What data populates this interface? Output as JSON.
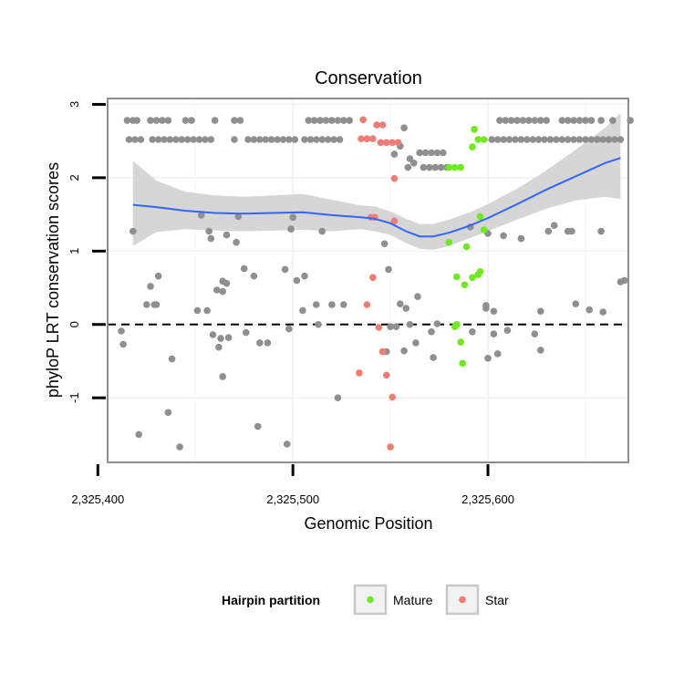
{
  "chart_data": {
    "type": "scatter",
    "title": "Conservation",
    "xlabel": "Genomic Position",
    "ylabel": "phyloP LRT conservation scores",
    "xlim": [
      2325405,
      2325672
    ],
    "ylim": [
      -1.88,
      3.08
    ],
    "x_ticks": [
      {
        "value": 2325400,
        "label": "2,325,400"
      },
      {
        "value": 2325500,
        "label": "2,325,500"
      },
      {
        "value": 2325600,
        "label": "2,325,600"
      }
    ],
    "y_ticks": [
      {
        "value": -1,
        "label": "-1"
      },
      {
        "value": 0,
        "label": "0"
      },
      {
        "value": 1,
        "label": "1"
      },
      {
        "value": 2,
        "label": "2"
      },
      {
        "value": 3,
        "label": "3"
      }
    ],
    "reference_line": {
      "y": 0,
      "style": "dashed"
    },
    "grid": true,
    "legend": {
      "title": "Hairpin partition",
      "placement": "bottom",
      "entries": [
        {
          "label": "Mature",
          "color": "#6EEA1E"
        },
        {
          "label": "Star",
          "color": "#F07C74"
        }
      ]
    },
    "colors": {
      "other": "#8F8F8F",
      "mature": "#6EEA1E",
      "star": "#F07C74",
      "smooth_line": "#3366FF",
      "ribbon": "#D2D2D2"
    },
    "series": [
      {
        "name": "Other",
        "color": "#8F8F8F",
        "points": [
          [
            2325415,
            2.78
          ],
          [
            2325418,
            2.78
          ],
          [
            2325420,
            2.78
          ],
          [
            2325427,
            2.78
          ],
          [
            2325430,
            2.78
          ],
          [
            2325433,
            2.78
          ],
          [
            2325436,
            2.78
          ],
          [
            2325445,
            2.78
          ],
          [
            2325448,
            2.78
          ],
          [
            2325460,
            2.78
          ],
          [
            2325470,
            2.78
          ],
          [
            2325473,
            2.78
          ],
          [
            2325508,
            2.78
          ],
          [
            2325511,
            2.78
          ],
          [
            2325514,
            2.78
          ],
          [
            2325517,
            2.78
          ],
          [
            2325520,
            2.78
          ],
          [
            2325523,
            2.78
          ],
          [
            2325526,
            2.78
          ],
          [
            2325529,
            2.78
          ],
          [
            2325606,
            2.78
          ],
          [
            2325609,
            2.78
          ],
          [
            2325612,
            2.78
          ],
          [
            2325615,
            2.78
          ],
          [
            2325618,
            2.78
          ],
          [
            2325621,
            2.78
          ],
          [
            2325624,
            2.78
          ],
          [
            2325627,
            2.78
          ],
          [
            2325630,
            2.78
          ],
          [
            2325638,
            2.78
          ],
          [
            2325641,
            2.78
          ],
          [
            2325644,
            2.78
          ],
          [
            2325647,
            2.78
          ],
          [
            2325650,
            2.78
          ],
          [
            2325653,
            2.78
          ],
          [
            2325658,
            2.78
          ],
          [
            2325664,
            2.78
          ],
          [
            2325673,
            2.78
          ],
          [
            2325416,
            2.52
          ],
          [
            2325419,
            2.52
          ],
          [
            2325422,
            2.52
          ],
          [
            2325428,
            2.52
          ],
          [
            2325431,
            2.52
          ],
          [
            2325434,
            2.52
          ],
          [
            2325437,
            2.52
          ],
          [
            2325440,
            2.52
          ],
          [
            2325443,
            2.52
          ],
          [
            2325446,
            2.52
          ],
          [
            2325449,
            2.52
          ],
          [
            2325452,
            2.52
          ],
          [
            2325455,
            2.52
          ],
          [
            2325458,
            2.52
          ],
          [
            2325470,
            2.52
          ],
          [
            2325477,
            2.52
          ],
          [
            2325480,
            2.52
          ],
          [
            2325483,
            2.52
          ],
          [
            2325486,
            2.52
          ],
          [
            2325489,
            2.52
          ],
          [
            2325492,
            2.52
          ],
          [
            2325495,
            2.52
          ],
          [
            2325498,
            2.52
          ],
          [
            2325501,
            2.52
          ],
          [
            2325506,
            2.52
          ],
          [
            2325509,
            2.52
          ],
          [
            2325512,
            2.52
          ],
          [
            2325515,
            2.52
          ],
          [
            2325518,
            2.52
          ],
          [
            2325521,
            2.52
          ],
          [
            2325524,
            2.52
          ],
          [
            2325602,
            2.52
          ],
          [
            2325605,
            2.52
          ],
          [
            2325608,
            2.52
          ],
          [
            2325611,
            2.52
          ],
          [
            2325614,
            2.52
          ],
          [
            2325617,
            2.52
          ],
          [
            2325620,
            2.52
          ],
          [
            2325623,
            2.52
          ],
          [
            2325626,
            2.52
          ],
          [
            2325629,
            2.52
          ],
          [
            2325632,
            2.52
          ],
          [
            2325635,
            2.52
          ],
          [
            2325638,
            2.52
          ],
          [
            2325641,
            2.52
          ],
          [
            2325644,
            2.52
          ],
          [
            2325647,
            2.52
          ],
          [
            2325650,
            2.52
          ],
          [
            2325653,
            2.52
          ],
          [
            2325656,
            2.52
          ],
          [
            2325659,
            2.52
          ],
          [
            2325662,
            2.52
          ],
          [
            2325665,
            2.52
          ],
          [
            2325668,
            2.52
          ],
          [
            2325557,
            2.68
          ],
          [
            2325555,
            2.43
          ],
          [
            2325552,
            2.32
          ],
          [
            2325560,
            2.26
          ],
          [
            2325562,
            2.2
          ],
          [
            2325559,
            2.14
          ],
          [
            2325565,
            2.34
          ],
          [
            2325568,
            2.34
          ],
          [
            2325571,
            2.34
          ],
          [
            2325574,
            2.34
          ],
          [
            2325577,
            2.34
          ],
          [
            2325567,
            2.14
          ],
          [
            2325570,
            2.14
          ],
          [
            2325573,
            2.14
          ],
          [
            2325576,
            2.14
          ],
          [
            2325579,
            2.14
          ],
          [
            2325418,
            1.27
          ],
          [
            2325453,
            1.49
          ],
          [
            2325457,
            1.27
          ],
          [
            2325458,
            1.17
          ],
          [
            2325466,
            1.22
          ],
          [
            2325472,
            1.47
          ],
          [
            2325471,
            1.12
          ],
          [
            2325500,
            1.46
          ],
          [
            2325499,
            1.3
          ],
          [
            2325515,
            1.27
          ],
          [
            2325547,
            1.1
          ],
          [
            2325591,
            1.33
          ],
          [
            2325600,
            1.24
          ],
          [
            2325608,
            1.21
          ],
          [
            2325617,
            1.17
          ],
          [
            2325631,
            1.27
          ],
          [
            2325634,
            1.35
          ],
          [
            2325641,
            1.27
          ],
          [
            2325643,
            1.27
          ],
          [
            2325658,
            1.27
          ],
          [
            2325427,
            0.52
          ],
          [
            2325431,
            0.66
          ],
          [
            2325425,
            0.27
          ],
          [
            2325430,
            0.27
          ],
          [
            2325429,
            0.27
          ],
          [
            2325451,
            0.19
          ],
          [
            2325456,
            0.19
          ],
          [
            2325461,
            0.47
          ],
          [
            2325464,
            0.59
          ],
          [
            2325466,
            0.56
          ],
          [
            2325464,
            0.45
          ],
          [
            2325475,
            0.76
          ],
          [
            2325480,
            0.66
          ],
          [
            2325496,
            0.75
          ],
          [
            2325502,
            0.6
          ],
          [
            2325506,
            0.66
          ],
          [
            2325505,
            0.19
          ],
          [
            2325512,
            0.27
          ],
          [
            2325520,
            0.27
          ],
          [
            2325526,
            0.27
          ],
          [
            2325549,
            0.75
          ],
          [
            2325555,
            0.28
          ],
          [
            2325558,
            0.22
          ],
          [
            2325564,
            0.38
          ],
          [
            2325599,
            0.26
          ],
          [
            2325599,
            0.22
          ],
          [
            2325603,
            0.18
          ],
          [
            2325627,
            0.18
          ],
          [
            2325645,
            0.28
          ],
          [
            2325652,
            0.2
          ],
          [
            2325659,
            0.17
          ],
          [
            2325668,
            0.58
          ],
          [
            2325670,
            0.6
          ],
          [
            2325412,
            -0.09
          ],
          [
            2325413,
            -0.27
          ],
          [
            2325438,
            -0.47
          ],
          [
            2325459,
            -0.14
          ],
          [
            2325463,
            -0.19
          ],
          [
            2325467,
            -0.18
          ],
          [
            2325462,
            -0.31
          ],
          [
            2325476,
            -0.11
          ],
          [
            2325483,
            -0.25
          ],
          [
            2325487,
            -0.25
          ],
          [
            2325498,
            -0.06
          ],
          [
            2325513,
            0.0
          ],
          [
            2325550,
            -0.03
          ],
          [
            2325553,
            -0.03
          ],
          [
            2325560,
            0.0
          ],
          [
            2325563,
            -0.25
          ],
          [
            2325571,
            -0.1
          ],
          [
            2325574,
            0.01
          ],
          [
            2325592,
            -0.1
          ],
          [
            2325603,
            -0.13
          ],
          [
            2325605,
            -0.4
          ],
          [
            2325610,
            -0.08
          ],
          [
            2325624,
            -0.13
          ],
          [
            2325627,
            -0.35
          ],
          [
            2325548,
            -0.37
          ],
          [
            2325557,
            -0.36
          ],
          [
            2325572,
            -0.45
          ],
          [
            2325600,
            -0.46
          ],
          [
            2325464,
            -0.71
          ],
          [
            2325523,
            -1.0
          ],
          [
            2325421,
            -1.5
          ],
          [
            2325436,
            -1.2
          ],
          [
            2325442,
            -1.67
          ],
          [
            2325482,
            -1.39
          ],
          [
            2325497,
            -1.63
          ]
        ]
      },
      {
        "name": "Mature",
        "color": "#6EEA1E",
        "points": [
          [
            2325593,
            2.66
          ],
          [
            2325592,
            2.42
          ],
          [
            2325595,
            2.52
          ],
          [
            2325598,
            2.52
          ],
          [
            2325580,
            2.14
          ],
          [
            2325583,
            2.14
          ],
          [
            2325586,
            2.14
          ],
          [
            2325596,
            1.47
          ],
          [
            2325598,
            1.29
          ],
          [
            2325580,
            1.12
          ],
          [
            2325589,
            1.06
          ],
          [
            2325588,
            0.54
          ],
          [
            2325584,
            0.65
          ],
          [
            2325592,
            0.64
          ],
          [
            2325595,
            0.68
          ],
          [
            2325596,
            0.72
          ],
          [
            2325584,
            0.0
          ],
          [
            2325583,
            -0.03
          ],
          [
            2325586,
            -0.24
          ],
          [
            2325587,
            -0.53
          ]
        ]
      },
      {
        "name": "Star",
        "color": "#F07C74",
        "points": [
          [
            2325536,
            2.79
          ],
          [
            2325543,
            2.72
          ],
          [
            2325546,
            2.72
          ],
          [
            2325535,
            2.53
          ],
          [
            2325538,
            2.53
          ],
          [
            2325541,
            2.53
          ],
          [
            2325545,
            2.48
          ],
          [
            2325548,
            2.48
          ],
          [
            2325551,
            2.48
          ],
          [
            2325554,
            2.48
          ],
          [
            2325552,
            1.99
          ],
          [
            2325540,
            1.46
          ],
          [
            2325542,
            1.46
          ],
          [
            2325552,
            1.41
          ],
          [
            2325541,
            0.64
          ],
          [
            2325538,
            0.27
          ],
          [
            2325544,
            -0.04
          ],
          [
            2325546,
            -0.37
          ],
          [
            2325534,
            -0.66
          ],
          [
            2325548,
            -0.69
          ],
          [
            2325551,
            -0.99
          ],
          [
            2325550,
            -1.67
          ]
        ]
      }
    ],
    "smooth": [
      [
        2325418,
        1.63
      ],
      [
        2325430,
        1.6
      ],
      [
        2325445,
        1.55
      ],
      [
        2325460,
        1.52
      ],
      [
        2325475,
        1.51
      ],
      [
        2325490,
        1.52
      ],
      [
        2325505,
        1.53
      ],
      [
        2325520,
        1.49
      ],
      [
        2325535,
        1.46
      ],
      [
        2325542,
        1.44
      ],
      [
        2325550,
        1.38
      ],
      [
        2325558,
        1.27
      ],
      [
        2325565,
        1.2
      ],
      [
        2325572,
        1.2
      ],
      [
        2325580,
        1.25
      ],
      [
        2325590,
        1.34
      ],
      [
        2325600,
        1.45
      ],
      [
        2325615,
        1.64
      ],
      [
        2325630,
        1.84
      ],
      [
        2325645,
        2.02
      ],
      [
        2325660,
        2.2
      ],
      [
        2325668,
        2.27
      ]
    ],
    "ribbon_upper": [
      [
        2325418,
        2.23
      ],
      [
        2325430,
        1.96
      ],
      [
        2325445,
        1.81
      ],
      [
        2325460,
        1.76
      ],
      [
        2325475,
        1.74
      ],
      [
        2325490,
        1.76
      ],
      [
        2325505,
        1.78
      ],
      [
        2325520,
        1.7
      ],
      [
        2325535,
        1.62
      ],
      [
        2325542,
        1.61
      ],
      [
        2325550,
        1.54
      ],
      [
        2325558,
        1.44
      ],
      [
        2325565,
        1.37
      ],
      [
        2325572,
        1.37
      ],
      [
        2325580,
        1.43
      ],
      [
        2325590,
        1.52
      ],
      [
        2325600,
        1.64
      ],
      [
        2325615,
        1.85
      ],
      [
        2325630,
        2.1
      ],
      [
        2325645,
        2.38
      ],
      [
        2325660,
        2.68
      ],
      [
        2325668,
        2.88
      ]
    ],
    "ribbon_lower": [
      [
        2325418,
        1.07
      ],
      [
        2325430,
        1.26
      ],
      [
        2325445,
        1.3
      ],
      [
        2325460,
        1.28
      ],
      [
        2325475,
        1.27
      ],
      [
        2325490,
        1.28
      ],
      [
        2325505,
        1.29
      ],
      [
        2325520,
        1.27
      ],
      [
        2325535,
        1.3
      ],
      [
        2325542,
        1.27
      ],
      [
        2325550,
        1.22
      ],
      [
        2325558,
        1.11
      ],
      [
        2325565,
        1.03
      ],
      [
        2325572,
        1.02
      ],
      [
        2325580,
        1.07
      ],
      [
        2325590,
        1.17
      ],
      [
        2325600,
        1.27
      ],
      [
        2325615,
        1.43
      ],
      [
        2325630,
        1.58
      ],
      [
        2325645,
        1.69
      ],
      [
        2325660,
        1.74
      ],
      [
        2325668,
        1.71
      ]
    ]
  }
}
